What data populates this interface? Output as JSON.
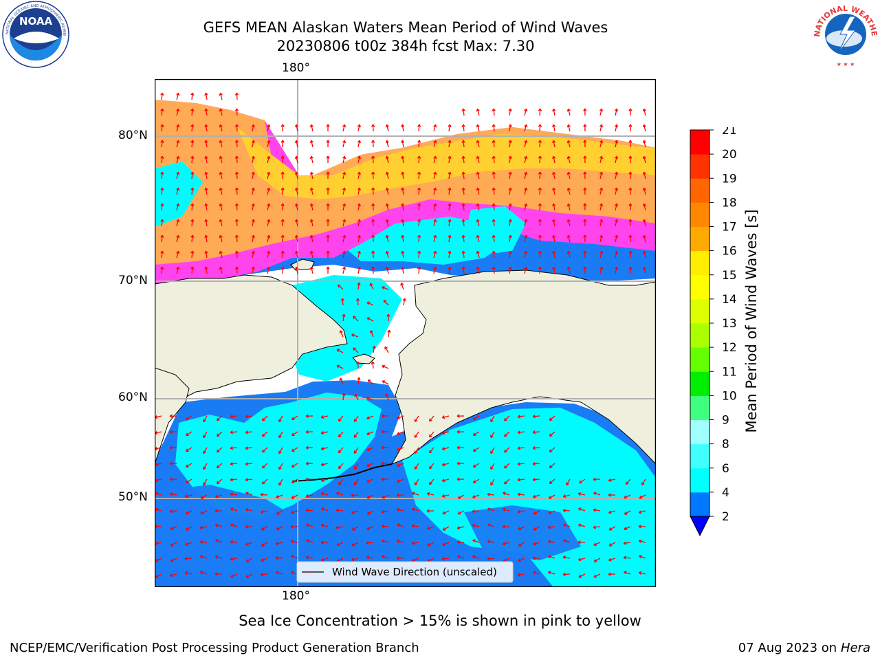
{
  "title": {
    "line1": "GEFS MEAN Alaskan Waters Mean Period of Wind Waves",
    "line2": "20230806 t00z 384h fcst   Max: 7.30"
  },
  "map": {
    "top_lon_label": "180°",
    "bottom_lon_label": "180°",
    "lat_labels": [
      "80°N",
      "70°N",
      "60°N",
      "50°N"
    ],
    "legend_label": "Wind Wave Direction (unscaled)",
    "colors": {
      "land": "#efefde",
      "arrow": "#ff0000",
      "grid": "#b0b0b0"
    }
  },
  "colorbar": {
    "label": "Mean Period of Wind Waves [s]",
    "ticks": [
      "2",
      "4",
      "6",
      "8",
      "9",
      "10",
      "11",
      "12",
      "13",
      "14",
      "15",
      "16",
      "17",
      "18",
      "19",
      "20",
      "21"
    ],
    "colors": [
      "#0077ff",
      "#00ffff",
      "#40ffff",
      "#a0ffff",
      "#40ff80",
      "#00ee00",
      "#66ff00",
      "#aaff00",
      "#ddff00",
      "#ffff00",
      "#ffee00",
      "#ffaa00",
      "#ff8800",
      "#ff6600",
      "#ff3300",
      "#ff0000"
    ],
    "under_color": "#0000ff"
  },
  "footer": {
    "note": "Sea Ice Concentration > 15% is shown in pink to yellow",
    "credit": "NCEP/EMC/Verification Post Processing Product Generation Branch",
    "date": "07 Aug 2023 on",
    "machine": "Hera"
  },
  "logos": {
    "noaa": "NOAA",
    "nws": "NATIONAL WEATHER SERVICE"
  }
}
